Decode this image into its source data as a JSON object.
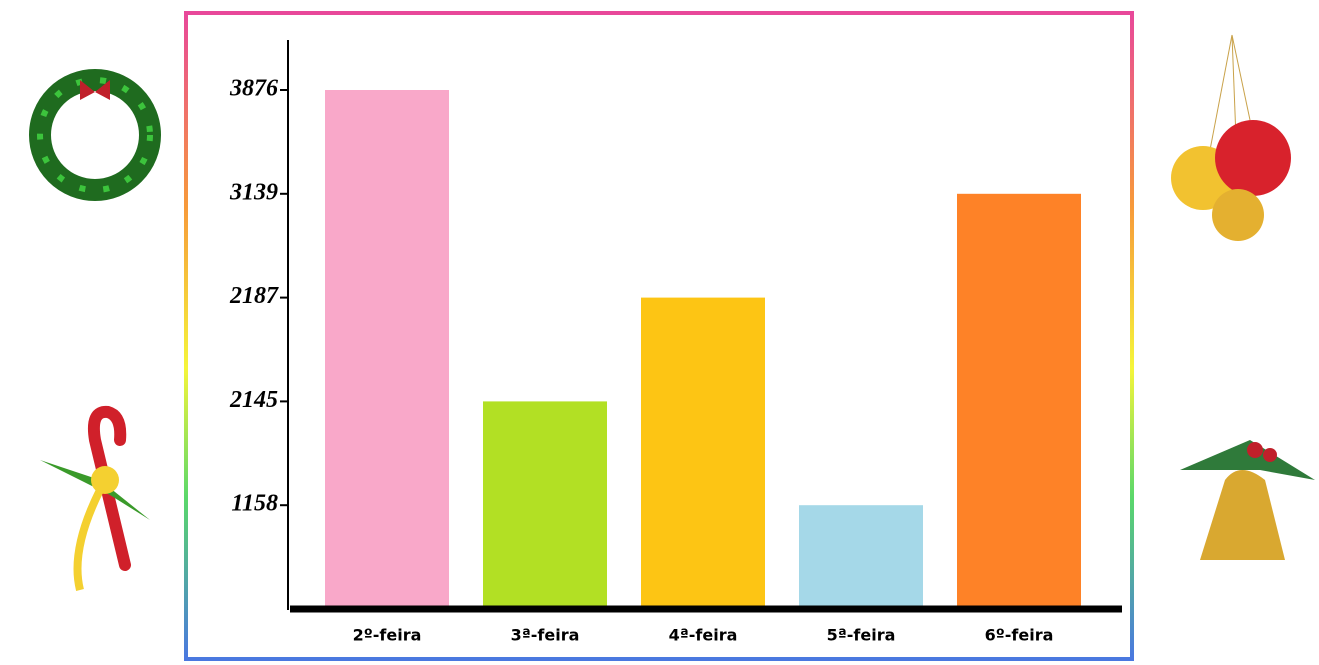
{
  "chart_data": {
    "type": "bar",
    "categories": [
      "2º-feira",
      "3ª-feira",
      "4ª-feira",
      "5ª-feira",
      "6º-feira"
    ],
    "values": [
      3876,
      2145,
      2187,
      1158,
      3139
    ],
    "colors": [
      "#f9a8c9",
      "#b2e024",
      "#fdc514",
      "#a5d8e8",
      "#fe8227"
    ],
    "yticks": [
      1158,
      2145,
      2187,
      3139,
      3876
    ],
    "yscale": "ordinal"
  }
}
